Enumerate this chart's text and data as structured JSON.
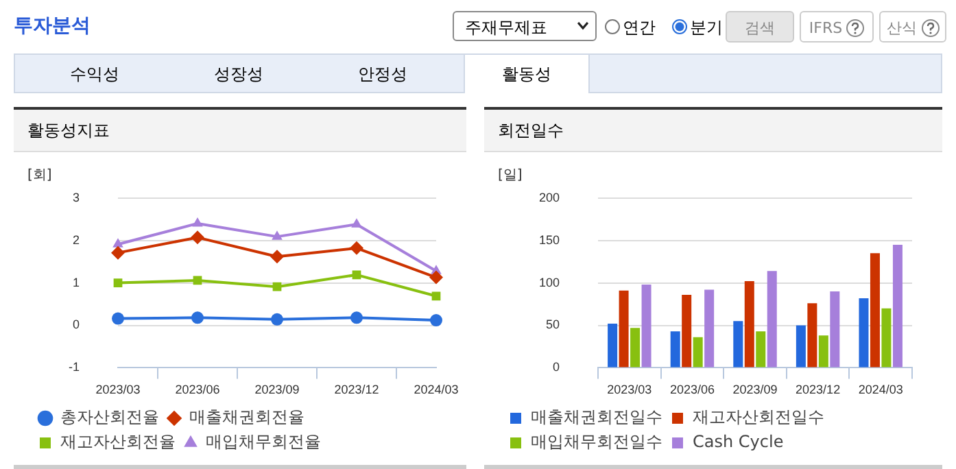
{
  "chart_data": [
    {
      "type": "other",
      "title": "투자분석",
      "annotations": [
        "주재무제표",
        "연간",
        "분기",
        "검색",
        "IFRS",
        "산식",
        "수익성",
        "성장성",
        "안정성",
        "활동성"
      ]
    },
    {
      "type": "line",
      "title": "활동성지표",
      "ylabel": "[회]",
      "categories": [
        "2023/03",
        "2023/06",
        "2023/09",
        "2023/12",
        "2024/03"
      ],
      "ylim": [
        -1,
        3
      ],
      "yticks": [
        -1,
        0,
        1,
        2,
        3
      ],
      "grid": "y",
      "legend": "bottom",
      "series": [
        {
          "name": "총자산회전율",
          "color": "#2a6fdb",
          "marker": "circle",
          "values": [
            0.16,
            0.18,
            0.14,
            0.18,
            0.12
          ]
        },
        {
          "name": "매출채권회전율",
          "color": "#cc3300",
          "marker": "diamond",
          "values": [
            1.71,
            2.07,
            1.62,
            1.82,
            1.13
          ]
        },
        {
          "name": "재고자산회전율",
          "color": "#88c010",
          "marker": "square",
          "values": [
            1.0,
            1.06,
            0.91,
            1.19,
            0.69
          ]
        },
        {
          "name": "매입채무회전율",
          "color": "#a67fdb",
          "marker": "triangle",
          "values": [
            1.91,
            2.4,
            2.09,
            2.38,
            1.28
          ]
        }
      ]
    },
    {
      "type": "bar",
      "title": "회전일수",
      "ylabel": "[일]",
      "categories": [
        "2023/03",
        "2023/06",
        "2023/09",
        "2023/12",
        "2024/03"
      ],
      "ylim": [
        0,
        200
      ],
      "yticks": [
        0,
        50,
        100,
        150,
        200
      ],
      "grid": "y",
      "legend": "bottom",
      "series": [
        {
          "name": "매출채권회전일수",
          "color": "#2368dd",
          "values": [
            52,
            43,
            55,
            50,
            82
          ]
        },
        {
          "name": "재고자산회전일수",
          "color": "#cc3300",
          "values": [
            91,
            86,
            102,
            76,
            135
          ]
        },
        {
          "name": "매입채무회전일수",
          "color": "#88c010",
          "values": [
            47,
            36,
            43,
            38,
            70
          ]
        },
        {
          "name": "Cash Cycle",
          "color": "#a67fdb",
          "values": [
            98,
            92,
            114,
            90,
            145
          ]
        }
      ]
    }
  ]
}
